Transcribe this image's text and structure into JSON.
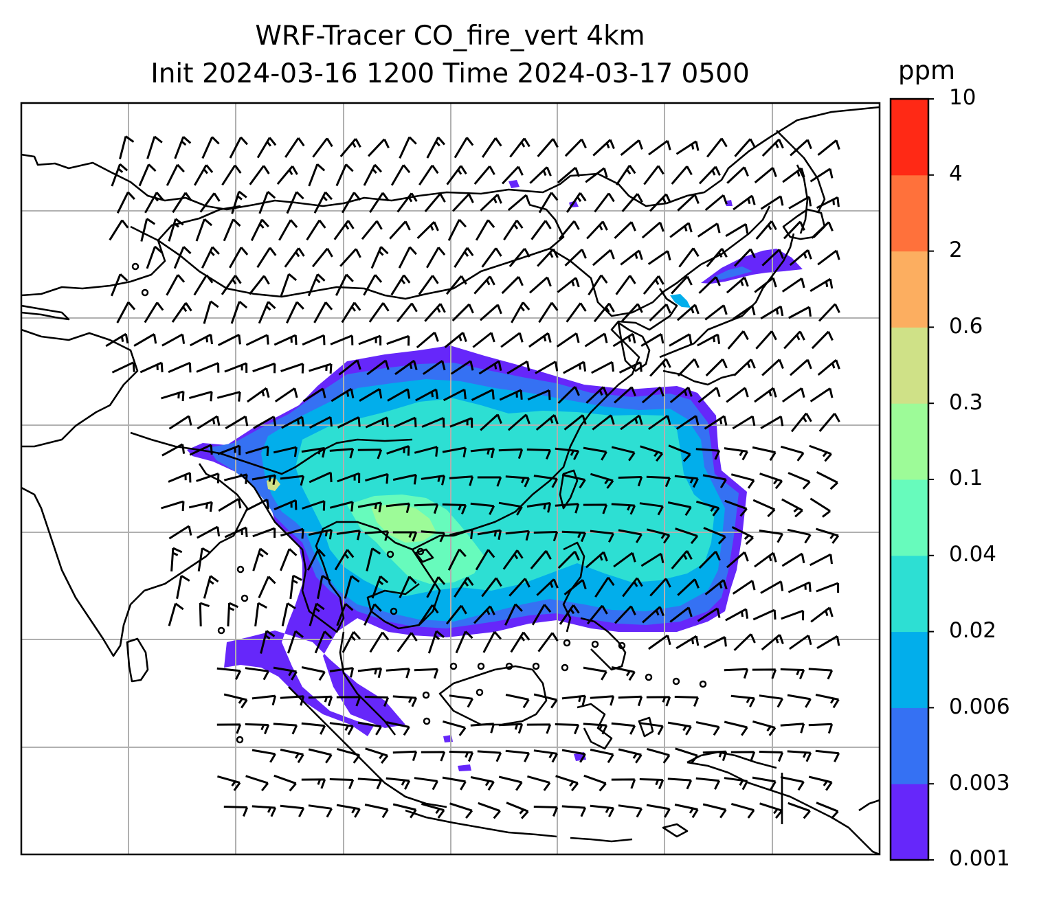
{
  "title_line1": "WRF-Tracer CO_fire_vert 4km",
  "title_line2": "Init 2024-03-16 1200 Time 2024-03-17 0500",
  "colorbar": {
    "unit": "ppm",
    "levels": [
      "0.001",
      "0.003",
      "0.006",
      "0.02",
      "0.04",
      "0.1",
      "0.3",
      "0.6",
      "2",
      "4",
      "10"
    ],
    "colors": [
      "#6627fa",
      "#3571f3",
      "#02aeeb",
      "#2ddfd3",
      "#67fbbc",
      "#9dfb98",
      "#cfe187",
      "#fcae60",
      "#ff713b",
      "#ff2915"
    ]
  },
  "map": {
    "coastline_color": "#000000",
    "gridline_color": "#b0b0b0",
    "wind_barb_color": "#000000",
    "field": "CO_fire_vert tracer concentration over East and Southeast Asia with wind barbs"
  }
}
